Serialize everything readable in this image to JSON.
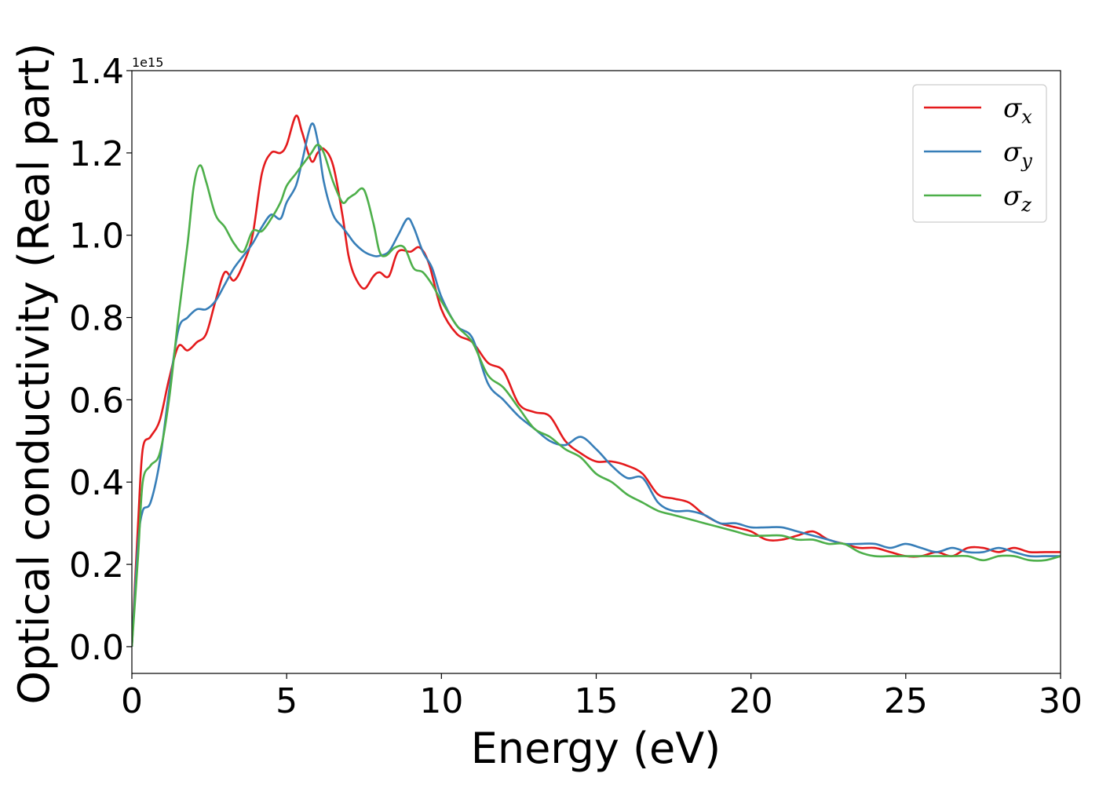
{
  "chart_data": {
    "type": "line",
    "xlabel": "Energy (eV)",
    "ylabel": "Optical conductivity (Real part)",
    "y_offset_label": "1e15",
    "xlim": [
      0,
      30
    ],
    "ylim": [
      -0.065,
      1.4
    ],
    "x_ticks": [
      0,
      5,
      10,
      15,
      20,
      25,
      30
    ],
    "x_tick_labels": [
      "0",
      "5",
      "10",
      "15",
      "20",
      "25",
      "30"
    ],
    "y_ticks": [
      0.0,
      0.2,
      0.4,
      0.6,
      0.8,
      1.0,
      1.2,
      1.4
    ],
    "y_tick_labels": [
      "0.0",
      "0.2",
      "0.4",
      "0.6",
      "0.8",
      "1.0",
      "1.2",
      "1.4"
    ],
    "grid": false,
    "legend_position": "top-right",
    "series": [
      {
        "name": "σx",
        "legend_base": "σ",
        "legend_sub": "x",
        "color": "#e41a1c",
        "x": [
          0,
          0.2,
          0.35,
          0.6,
          0.9,
          1.2,
          1.5,
          1.8,
          2.1,
          2.4,
          2.7,
          3.0,
          3.3,
          3.6,
          3.9,
          4.2,
          4.5,
          4.8,
          5.0,
          5.3,
          5.5,
          5.8,
          6.0,
          6.2,
          6.5,
          6.8,
          7.0,
          7.2,
          7.5,
          7.8,
          8.0,
          8.3,
          8.6,
          9.0,
          9.3,
          9.6,
          10.0,
          10.5,
          11.0,
          11.5,
          12.0,
          12.5,
          13.0,
          13.5,
          14.0,
          14.5,
          15.0,
          15.5,
          16.0,
          16.5,
          17.0,
          17.5,
          18.0,
          18.5,
          19.0,
          19.5,
          20.0,
          20.5,
          21.0,
          21.5,
          22.0,
          22.5,
          23.0,
          23.5,
          24.0,
          24.5,
          25.0,
          25.5,
          26.0,
          26.5,
          27.0,
          27.5,
          28.0,
          28.5,
          29.0,
          29.5,
          30.0
        ],
        "values": [
          0.0,
          0.3,
          0.48,
          0.51,
          0.55,
          0.65,
          0.73,
          0.72,
          0.74,
          0.76,
          0.84,
          0.91,
          0.89,
          0.93,
          1.0,
          1.15,
          1.2,
          1.2,
          1.22,
          1.29,
          1.25,
          1.18,
          1.2,
          1.21,
          1.17,
          1.05,
          0.95,
          0.9,
          0.87,
          0.9,
          0.91,
          0.9,
          0.96,
          0.96,
          0.97,
          0.93,
          0.82,
          0.76,
          0.74,
          0.69,
          0.67,
          0.59,
          0.57,
          0.56,
          0.5,
          0.47,
          0.45,
          0.45,
          0.44,
          0.42,
          0.37,
          0.36,
          0.35,
          0.32,
          0.3,
          0.29,
          0.28,
          0.26,
          0.26,
          0.27,
          0.28,
          0.26,
          0.25,
          0.24,
          0.24,
          0.23,
          0.22,
          0.22,
          0.23,
          0.22,
          0.24,
          0.24,
          0.23,
          0.24,
          0.23,
          0.23,
          0.23
        ]
      },
      {
        "name": "σy",
        "legend_base": "σ",
        "legend_sub": "y",
        "color": "#377eb8",
        "x": [
          0,
          0.2,
          0.35,
          0.6,
          0.9,
          1.2,
          1.5,
          1.8,
          2.1,
          2.4,
          2.7,
          3.0,
          3.3,
          3.6,
          3.9,
          4.2,
          4.5,
          4.8,
          5.0,
          5.3,
          5.5,
          5.8,
          6.0,
          6.2,
          6.5,
          6.8,
          7.0,
          7.2,
          7.5,
          7.8,
          8.0,
          8.3,
          8.6,
          8.9,
          9.1,
          9.4,
          9.7,
          10.0,
          10.5,
          11.0,
          11.5,
          12.0,
          12.5,
          13.0,
          13.5,
          14.0,
          14.5,
          15.0,
          15.5,
          16.0,
          16.5,
          17.0,
          17.5,
          18.0,
          18.5,
          19.0,
          19.5,
          20.0,
          20.5,
          21.0,
          21.5,
          22.0,
          22.5,
          23.0,
          23.5,
          24.0,
          24.5,
          25.0,
          25.5,
          26.0,
          26.5,
          27.0,
          27.5,
          28.0,
          28.5,
          29.0,
          29.5,
          30.0
        ],
        "values": [
          0.0,
          0.25,
          0.33,
          0.35,
          0.45,
          0.62,
          0.77,
          0.8,
          0.82,
          0.82,
          0.84,
          0.88,
          0.92,
          0.95,
          0.98,
          1.02,
          1.05,
          1.04,
          1.08,
          1.12,
          1.18,
          1.27,
          1.23,
          1.13,
          1.05,
          1.02,
          1.0,
          0.98,
          0.96,
          0.95,
          0.95,
          0.96,
          1.0,
          1.04,
          1.02,
          0.96,
          0.92,
          0.85,
          0.78,
          0.75,
          0.64,
          0.6,
          0.56,
          0.53,
          0.5,
          0.49,
          0.51,
          0.48,
          0.44,
          0.41,
          0.41,
          0.35,
          0.33,
          0.33,
          0.32,
          0.3,
          0.3,
          0.29,
          0.29,
          0.29,
          0.28,
          0.27,
          0.26,
          0.25,
          0.25,
          0.25,
          0.24,
          0.25,
          0.24,
          0.23,
          0.24,
          0.23,
          0.23,
          0.24,
          0.23,
          0.22,
          0.22,
          0.22
        ]
      },
      {
        "name": "σz",
        "legend_base": "σ",
        "legend_sub": "z",
        "color": "#4daf4a",
        "x": [
          0,
          0.2,
          0.35,
          0.6,
          0.9,
          1.2,
          1.5,
          1.8,
          2.0,
          2.2,
          2.4,
          2.7,
          3.0,
          3.3,
          3.6,
          3.9,
          4.2,
          4.5,
          4.8,
          5.0,
          5.3,
          5.6,
          5.8,
          6.0,
          6.2,
          6.5,
          6.8,
          7.0,
          7.2,
          7.5,
          7.8,
          8.0,
          8.2,
          8.5,
          8.8,
          9.1,
          9.4,
          9.7,
          10.0,
          10.5,
          11.0,
          11.5,
          12.0,
          12.5,
          13.0,
          13.5,
          14.0,
          14.5,
          15.0,
          15.5,
          16.0,
          16.5,
          17.0,
          17.5,
          18.0,
          18.5,
          19.0,
          19.5,
          20.0,
          20.5,
          21.0,
          21.5,
          22.0,
          22.5,
          23.0,
          23.5,
          24.0,
          24.5,
          25.0,
          25.5,
          26.0,
          26.5,
          27.0,
          27.5,
          28.0,
          28.5,
          29.0,
          29.5,
          30.0
        ],
        "values": [
          0.0,
          0.22,
          0.4,
          0.44,
          0.47,
          0.6,
          0.8,
          0.98,
          1.12,
          1.17,
          1.13,
          1.05,
          1.02,
          0.98,
          0.96,
          1.01,
          1.01,
          1.04,
          1.08,
          1.12,
          1.15,
          1.18,
          1.2,
          1.22,
          1.2,
          1.13,
          1.08,
          1.09,
          1.1,
          1.11,
          1.03,
          0.96,
          0.95,
          0.97,
          0.97,
          0.92,
          0.91,
          0.88,
          0.84,
          0.78,
          0.74,
          0.66,
          0.63,
          0.58,
          0.53,
          0.51,
          0.48,
          0.46,
          0.42,
          0.4,
          0.37,
          0.35,
          0.33,
          0.32,
          0.31,
          0.3,
          0.29,
          0.28,
          0.27,
          0.27,
          0.27,
          0.26,
          0.26,
          0.25,
          0.25,
          0.23,
          0.22,
          0.22,
          0.22,
          0.22,
          0.22,
          0.22,
          0.22,
          0.21,
          0.22,
          0.22,
          0.21,
          0.21,
          0.22
        ]
      }
    ]
  }
}
